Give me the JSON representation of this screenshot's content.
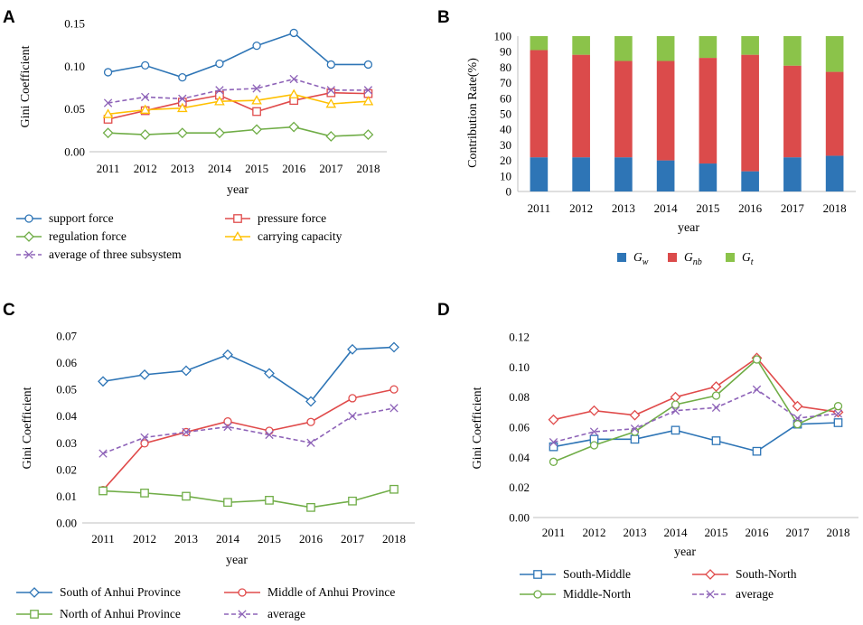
{
  "chart_data": [
    {
      "panel": "A",
      "type": "line",
      "xlabel": "year",
      "ylabel": "Gini Coefficient",
      "ylim": [
        0,
        0.15
      ],
      "yticks": [
        "0.00",
        "0.05",
        "0.10",
        "0.15"
      ],
      "categories": [
        "2011",
        "2012",
        "2013",
        "2014",
        "2015",
        "2016",
        "2017",
        "2018"
      ],
      "series": [
        {
          "name": "support force",
          "color": "#2E75B6",
          "marker": "circle",
          "dashed": false,
          "values": [
            0.093,
            0.101,
            0.087,
            0.103,
            0.124,
            0.139,
            0.102,
            0.102
          ]
        },
        {
          "name": "pressure force",
          "color": "#E04B4B",
          "marker": "square",
          "dashed": false,
          "values": [
            0.038,
            0.048,
            0.058,
            0.066,
            0.047,
            0.06,
            0.069,
            0.068
          ]
        },
        {
          "name": "regulation force",
          "color": "#70AD47",
          "marker": "diamond",
          "dashed": false,
          "values": [
            0.022,
            0.02,
            0.022,
            0.022,
            0.026,
            0.029,
            0.018,
            0.02
          ]
        },
        {
          "name": "carrying capacity",
          "color": "#FFC000",
          "marker": "triangle",
          "dashed": false,
          "values": [
            0.044,
            0.049,
            0.051,
            0.059,
            0.06,
            0.067,
            0.056,
            0.059
          ]
        },
        {
          "name": "average of three subsystem",
          "color": "#8E63B8",
          "marker": "x",
          "dashed": true,
          "values": [
            0.057,
            0.064,
            0.062,
            0.072,
            0.074,
            0.085,
            0.072,
            0.072
          ]
        }
      ]
    },
    {
      "panel": "B",
      "type": "bar",
      "stacked": true,
      "xlabel": "year",
      "ylabel": "Contribution Rate(%)",
      "ylim": [
        0,
        100
      ],
      "yticks": [
        "0",
        "10",
        "20",
        "30",
        "40",
        "50",
        "60",
        "70",
        "80",
        "90",
        "100"
      ],
      "categories": [
        "2011",
        "2012",
        "2013",
        "2014",
        "2015",
        "2016",
        "2017",
        "2018"
      ],
      "series": [
        {
          "name": "G",
          "subscript": "w",
          "color": "#2E75B6",
          "values": [
            22,
            22,
            22,
            20,
            18,
            13,
            22,
            23
          ]
        },
        {
          "name": "G",
          "subscript": "nb",
          "color": "#DB4B4B",
          "values": [
            69,
            66,
            62,
            64,
            68,
            75,
            59,
            54
          ]
        },
        {
          "name": "G",
          "subscript": "t",
          "color": "#8BC34A",
          "values": [
            9,
            12,
            16,
            16,
            14,
            12,
            19,
            23
          ]
        }
      ]
    },
    {
      "panel": "C",
      "type": "line",
      "xlabel": "year",
      "ylabel": "Gini Coefficient",
      "ylim": [
        0,
        0.07
      ],
      "yticks": [
        "0.00",
        "0.01",
        "0.02",
        "0.03",
        "0.04",
        "0.05",
        "0.06",
        "0.07"
      ],
      "categories": [
        "2011",
        "2012",
        "2013",
        "2014",
        "2015",
        "2016",
        "2017",
        "2018"
      ],
      "series": [
        {
          "name": "South of Anhui Province",
          "color": "#2E75B6",
          "marker": "diamond",
          "dashed": false,
          "values": [
            0.053,
            0.0555,
            0.057,
            0.063,
            0.056,
            0.0455,
            0.065,
            0.0658
          ]
        },
        {
          "name": "Middle of Anhui Province",
          "color": "#E04B4B",
          "marker": "circle",
          "dashed": false,
          "values": [
            0.0123,
            0.0298,
            0.034,
            0.038,
            0.0345,
            0.0378,
            0.0467,
            0.05
          ]
        },
        {
          "name": "North of Anhui Province",
          "color": "#70AD47",
          "marker": "square",
          "dashed": false,
          "values": [
            0.012,
            0.0112,
            0.01,
            0.0077,
            0.0085,
            0.0058,
            0.0082,
            0.0126
          ]
        },
        {
          "name": "average",
          "color": "#8E63B8",
          "marker": "x",
          "dashed": true,
          "values": [
            0.026,
            0.032,
            0.034,
            0.036,
            0.033,
            0.03,
            0.04,
            0.043
          ]
        }
      ]
    },
    {
      "panel": "D",
      "type": "line",
      "xlabel": "year",
      "ylabel": "Gini Coefficient",
      "ylim": [
        0,
        0.12
      ],
      "yticks": [
        "0.00",
        "0.02",
        "0.04",
        "0.06",
        "0.08",
        "0.10",
        "0.12"
      ],
      "categories": [
        "2011",
        "2012",
        "2013",
        "2014",
        "2015",
        "2016",
        "2017",
        "2018"
      ],
      "series": [
        {
          "name": "South-Middle",
          "color": "#2E75B6",
          "marker": "square",
          "dashed": false,
          "values": [
            0.047,
            0.052,
            0.052,
            0.058,
            0.051,
            0.044,
            0.062,
            0.063
          ]
        },
        {
          "name": "South-North",
          "color": "#E04B4B",
          "marker": "diamond",
          "dashed": false,
          "values": [
            0.065,
            0.071,
            0.068,
            0.08,
            0.087,
            0.106,
            0.074,
            0.07
          ]
        },
        {
          "name": "Middle-North",
          "color": "#70AD47",
          "marker": "circle",
          "dashed": false,
          "values": [
            0.037,
            0.048,
            0.057,
            0.075,
            0.081,
            0.105,
            0.062,
            0.074
          ]
        },
        {
          "name": "average",
          "color": "#8E63B8",
          "marker": "x",
          "dashed": true,
          "values": [
            0.05,
            0.057,
            0.059,
            0.071,
            0.073,
            0.085,
            0.066,
            0.069
          ]
        }
      ]
    }
  ]
}
